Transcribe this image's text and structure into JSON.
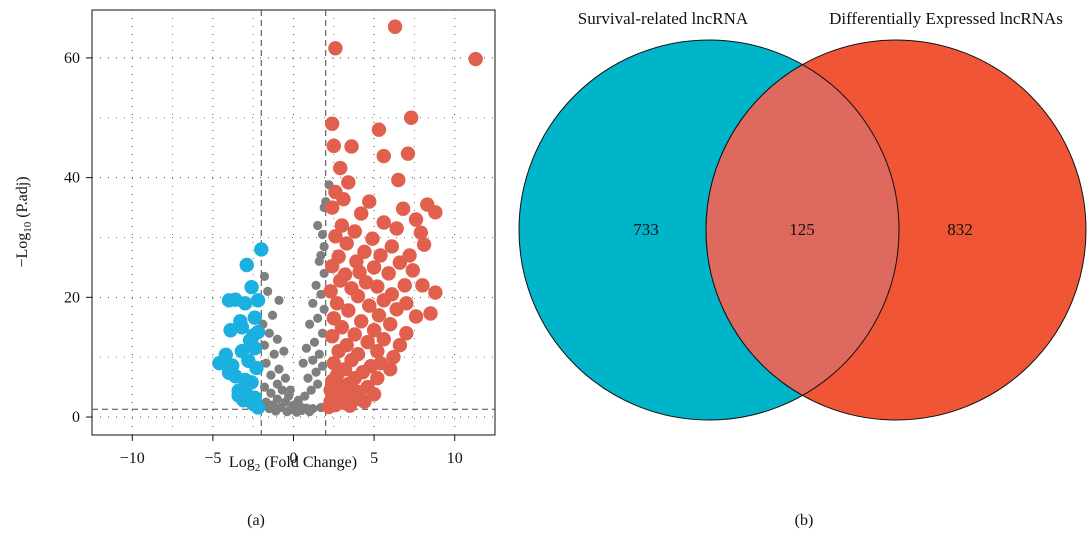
{
  "panels": {
    "a_label": "(a)",
    "b_label": "(b)"
  },
  "colors": {
    "down": "#1ab0e0",
    "ns": "#7f7f7f",
    "up": "#e0604d",
    "venn_left": "#00b4c9",
    "venn_right": "#f05535",
    "venn_overlap": "#de695e"
  },
  "chart_data": [
    {
      "type": "scatter",
      "title": "",
      "xlabel": "Log",
      "xlabel_sub": "2",
      "xlabel_rest": " (Fold Change)",
      "ylabel": "−Log",
      "ylabel_sub": "10",
      "ylabel_rest": " (P.adj)",
      "xlim": [
        -12.5,
        12.5
      ],
      "ylim": [
        -3,
        68
      ],
      "xticks": [
        -10,
        -5,
        0,
        5,
        10
      ],
      "xtick_labels": [
        "−10",
        "−5",
        "0",
        "5",
        "10"
      ],
      "yticks": [
        0,
        20,
        40,
        60
      ],
      "ytick_labels": [
        "0",
        "20",
        "40",
        "60"
      ],
      "grid": "dotted",
      "thresholds": {
        "logfc": [
          -2,
          2
        ],
        "neg_log10_padj": 1.3
      },
      "series": [
        {
          "group": "down",
          "points": [
            [
              -2.0,
              28.0
            ],
            [
              -2.9,
              25.4
            ],
            [
              -3.6,
              19.6
            ],
            [
              -3.0,
              19.0
            ],
            [
              -2.6,
              21.7
            ],
            [
              -2.2,
              19.5
            ],
            [
              -4.0,
              19.5
            ],
            [
              -3.9,
              14.5
            ],
            [
              -3.2,
              15.0
            ],
            [
              -2.5,
              13.6
            ],
            [
              -2.4,
              16.6
            ],
            [
              -4.6,
              9.0
            ],
            [
              -4.2,
              10.4
            ],
            [
              -3.8,
              8.6
            ],
            [
              -3.2,
              11.0
            ],
            [
              -2.8,
              9.4
            ],
            [
              -2.4,
              11.5
            ],
            [
              -2.3,
              8.2
            ],
            [
              -3.6,
              6.8
            ],
            [
              -3.0,
              6.2
            ],
            [
              -2.6,
              5.8
            ],
            [
              -3.4,
              4.4
            ],
            [
              -3.4,
              3.6
            ],
            [
              -2.9,
              3.8
            ],
            [
              -2.4,
              3.2
            ],
            [
              -2.5,
              2.2
            ],
            [
              -2.2,
              1.6
            ],
            [
              -3.1,
              2.8
            ],
            [
              -4.0,
              7.4
            ],
            [
              -2.7,
              12.8
            ],
            [
              -2.2,
              14.2
            ],
            [
              -3.3,
              16.0
            ]
          ]
        },
        {
          "group": "ns",
          "points": [
            [
              -1.8,
              23.5
            ],
            [
              -1.6,
              21.0
            ],
            [
              -0.9,
              19.5
            ],
            [
              -1.3,
              17.0
            ],
            [
              -1.9,
              15.5
            ],
            [
              -1.5,
              14.0
            ],
            [
              -1.0,
              13.0
            ],
            [
              -1.8,
              12.0
            ],
            [
              -0.6,
              11.0
            ],
            [
              -1.2,
              10.5
            ],
            [
              -1.7,
              9.0
            ],
            [
              -0.9,
              8.0
            ],
            [
              -1.4,
              7.0
            ],
            [
              -0.5,
              6.5
            ],
            [
              -1.0,
              5.5
            ],
            [
              -1.8,
              5.0
            ],
            [
              -0.7,
              4.5
            ],
            [
              -1.4,
              4.0
            ],
            [
              -0.3,
              3.5
            ],
            [
              -1.0,
              3.0
            ],
            [
              -1.7,
              2.5
            ],
            [
              -0.5,
              2.5
            ],
            [
              -1.3,
              2.0
            ],
            [
              0.0,
              2.0
            ],
            [
              -0.8,
              1.6
            ],
            [
              0.4,
              1.8
            ],
            [
              -1.5,
              1.4
            ],
            [
              0.8,
              1.5
            ],
            [
              -0.2,
              1.2
            ],
            [
              1.2,
              1.4
            ],
            [
              1.7,
              1.6
            ],
            [
              0.5,
              1.1
            ],
            [
              -0.4,
              0.9
            ],
            [
              0.2,
              0.8
            ],
            [
              1.0,
              0.9
            ],
            [
              -1.1,
              1.0
            ],
            [
              0.3,
              2.8
            ],
            [
              0.7,
              3.5
            ],
            [
              1.1,
              4.5
            ],
            [
              1.5,
              5.5
            ],
            [
              0.9,
              6.5
            ],
            [
              1.4,
              7.5
            ],
            [
              1.8,
              8.5
            ],
            [
              1.2,
              9.5
            ],
            [
              1.6,
              10.5
            ],
            [
              0.8,
              11.5
            ],
            [
              1.3,
              12.5
            ],
            [
              1.8,
              14.0
            ],
            [
              1.0,
              15.5
            ],
            [
              1.5,
              16.5
            ],
            [
              1.9,
              18.0
            ],
            [
              1.2,
              19.0
            ],
            [
              1.7,
              20.5
            ],
            [
              1.4,
              22.0
            ],
            [
              1.9,
              24.0
            ],
            [
              1.6,
              26.0
            ],
            [
              1.9,
              28.5
            ],
            [
              1.8,
              30.5
            ],
            [
              1.5,
              32.0
            ],
            [
              1.9,
              35.0
            ],
            [
              2.0,
              36.0
            ],
            [
              2.2,
              38.8
            ],
            [
              1.7,
              27.0
            ],
            [
              0.6,
              9.0
            ],
            [
              -0.2,
              4.5
            ]
          ]
        },
        {
          "group": "up",
          "points": [
            [
              2.6,
              61.6
            ],
            [
              6.3,
              65.2
            ],
            [
              11.3,
              59.8
            ],
            [
              2.4,
              49.0
            ],
            [
              7.3,
              50.0
            ],
            [
              5.3,
              48.0
            ],
            [
              2.5,
              45.3
            ],
            [
              3.6,
              45.2
            ],
            [
              7.1,
              44.0
            ],
            [
              5.6,
              43.6
            ],
            [
              2.9,
              41.6
            ],
            [
              6.5,
              39.6
            ],
            [
              3.4,
              39.2
            ],
            [
              2.6,
              37.6
            ],
            [
              3.1,
              36.4
            ],
            [
              4.7,
              36.0
            ],
            [
              6.8,
              34.8
            ],
            [
              8.3,
              35.5
            ],
            [
              8.8,
              34.2
            ],
            [
              2.4,
              35.0
            ],
            [
              4.2,
              34.0
            ],
            [
              7.6,
              33.0
            ],
            [
              3.0,
              32.0
            ],
            [
              5.6,
              32.5
            ],
            [
              3.8,
              31.0
            ],
            [
              6.4,
              31.5
            ],
            [
              7.9,
              30.8
            ],
            [
              2.6,
              30.2
            ],
            [
              4.9,
              29.8
            ],
            [
              3.3,
              29.0
            ],
            [
              6.1,
              28.5
            ],
            [
              8.1,
              28.8
            ],
            [
              4.4,
              27.6
            ],
            [
              5.4,
              27.0
            ],
            [
              2.8,
              26.8
            ],
            [
              7.2,
              27.0
            ],
            [
              3.9,
              26.0
            ],
            [
              6.6,
              25.8
            ],
            [
              2.4,
              25.2
            ],
            [
              5.0,
              25.0
            ],
            [
              4.1,
              24.2
            ],
            [
              5.9,
              24.0
            ],
            [
              7.4,
              24.5
            ],
            [
              3.2,
              23.8
            ],
            [
              2.9,
              22.8
            ],
            [
              4.5,
              22.5
            ],
            [
              6.9,
              22.0
            ],
            [
              3.6,
              21.5
            ],
            [
              5.2,
              21.8
            ],
            [
              2.3,
              21.0
            ],
            [
              6.1,
              20.5
            ],
            [
              4.0,
              20.2
            ],
            [
              5.6,
              19.5
            ],
            [
              7.0,
              19.0
            ],
            [
              2.7,
              19.0
            ],
            [
              4.7,
              18.6
            ],
            [
              6.4,
              18.0
            ],
            [
              8.5,
              17.3
            ],
            [
              3.4,
              17.8
            ],
            [
              5.3,
              17.0
            ],
            [
              7.6,
              16.8
            ],
            [
              2.5,
              16.5
            ],
            [
              4.2,
              16.0
            ],
            [
              6.0,
              15.5
            ],
            [
              3.0,
              15.0
            ],
            [
              5.0,
              14.5
            ],
            [
              7.0,
              14.0
            ],
            [
              3.8,
              13.8
            ],
            [
              5.6,
              13.0
            ],
            [
              2.4,
              13.5
            ],
            [
              4.6,
              12.5
            ],
            [
              6.6,
              12.0
            ],
            [
              3.3,
              12.0
            ],
            [
              5.2,
              11.0
            ],
            [
              2.8,
              11.0
            ],
            [
              4.0,
              10.5
            ],
            [
              6.2,
              10.0
            ],
            [
              3.6,
              9.5
            ],
            [
              5.4,
              9.0
            ],
            [
              2.5,
              9.0
            ],
            [
              4.8,
              8.5
            ],
            [
              3.2,
              8.0
            ],
            [
              6.0,
              8.0
            ],
            [
              4.3,
              7.5
            ],
            [
              2.7,
              7.0
            ],
            [
              3.8,
              6.5
            ],
            [
              5.2,
              6.5
            ],
            [
              2.4,
              6.0
            ],
            [
              3.4,
              5.5
            ],
            [
              4.6,
              5.0
            ],
            [
              2.9,
              5.0
            ],
            [
              4.0,
              4.2
            ],
            [
              2.3,
              4.5
            ],
            [
              3.4,
              3.8
            ],
            [
              5.0,
              3.8
            ],
            [
              2.6,
              3.2
            ],
            [
              3.9,
              3.0
            ],
            [
              2.3,
              2.6
            ],
            [
              3.1,
              2.4
            ],
            [
              4.4,
              2.6
            ],
            [
              2.6,
              2.0
            ],
            [
              3.5,
              1.9
            ],
            [
              2.2,
              1.7
            ],
            [
              8.0,
              22.0
            ],
            [
              8.8,
              20.8
            ]
          ]
        }
      ]
    },
    {
      "type": "venn",
      "sets": [
        {
          "name": "Survival-related lncRNA",
          "only": 733
        },
        {
          "name": "Differentially Expressed lncRNAs",
          "only": 832
        }
      ],
      "intersection": 125
    }
  ]
}
